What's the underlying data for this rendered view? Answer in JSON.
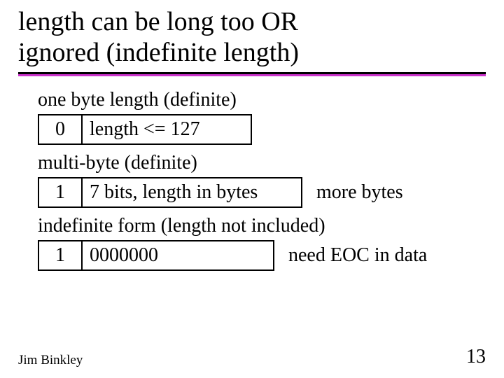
{
  "title_line1": "length can  be long too OR",
  "title_line2": "ignored (indefinite length)",
  "colors": {
    "text": "#000000",
    "background": "#ffffff",
    "underline": "#000000",
    "accent": "#cc33cc"
  },
  "section1": {
    "label": "one byte length (definite)",
    "bit": "0",
    "desc": "length <= 127"
  },
  "section2": {
    "label": "multi-byte (definite)",
    "bit": "1",
    "desc": "7 bits, length in bytes",
    "after": "more bytes"
  },
  "section3": {
    "label": "indefinite form (length not included)",
    "bit": "1",
    "desc": "0000000",
    "after": "need EOC in data"
  },
  "footer": {
    "author": "Jim Binkley",
    "page": "13"
  }
}
